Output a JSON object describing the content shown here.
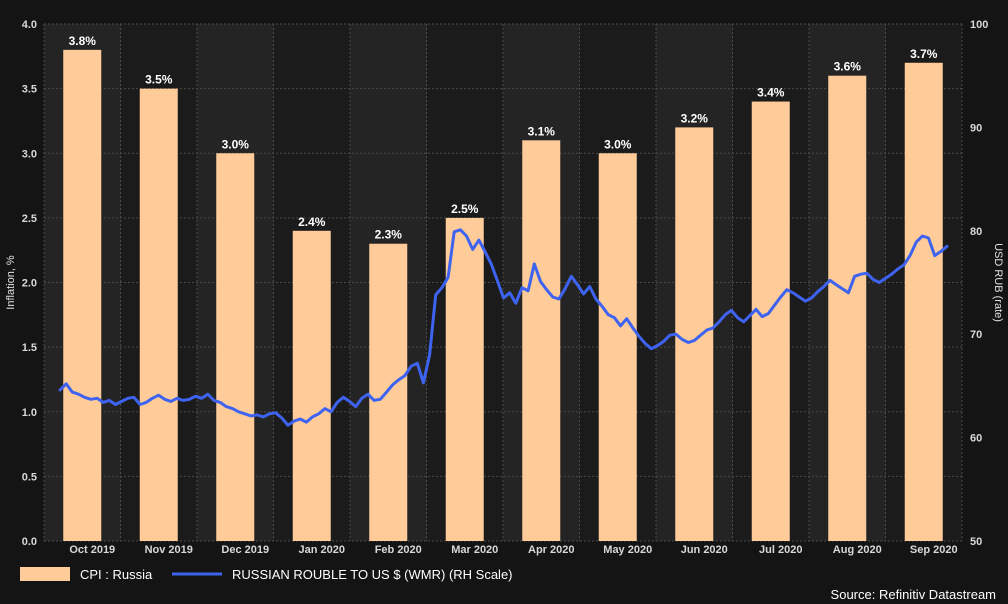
{
  "chart_data": {
    "type": "bar+line",
    "title": "",
    "categories": [
      "Oct 2019",
      "Nov 2019",
      "Dec 2019",
      "Jan 2020",
      "Feb 2020",
      "Mar 2020",
      "Apr 2020",
      "May 2020",
      "Jun 2020",
      "Jul 2020",
      "Aug 2020",
      "Sep 2020"
    ],
    "bar_series": {
      "name": "CPI : Russia",
      "values": [
        3.8,
        3.5,
        3.0,
        2.4,
        2.3,
        2.5,
        3.1,
        3.0,
        3.2,
        3.4,
        3.6,
        3.7
      ],
      "data_labels": [
        "3.8%",
        "3.5%",
        "3.0%",
        "2.4%",
        "2.3%",
        "2.5%",
        "3.1%",
        "3.0%",
        "3.2%",
        "3.4%",
        "3.6%",
        "3.7%"
      ],
      "color": "#ffcc99"
    },
    "line_series": {
      "name": "RUSSIAN ROUBLE TO US $ (WMR) (RH Scale)",
      "color": "#3d63f0",
      "values": [
        64.6,
        65.2,
        64.4,
        64.2,
        63.9,
        63.7,
        63.8,
        63.4,
        63.6,
        63.2,
        63.5,
        63.8,
        63.9,
        63.2,
        63.4,
        63.8,
        64.1,
        63.7,
        63.5,
        63.8,
        63.6,
        63.7,
        64.0,
        63.8,
        64.2,
        63.6,
        63.4,
        63.0,
        62.8,
        62.5,
        62.3,
        62.1,
        62.2,
        62.0,
        62.3,
        62.4,
        61.9,
        61.2,
        61.6,
        61.8,
        61.5,
        62.0,
        62.3,
        62.8,
        62.5,
        63.4,
        63.9,
        63.5,
        63.0,
        63.8,
        64.2,
        63.6,
        63.7,
        64.4,
        65.1,
        65.6,
        66.0,
        66.9,
        67.2,
        65.3,
        68.0,
        73.8,
        74.5,
        75.5,
        79.9,
        80.1,
        79.5,
        78.2,
        79.1,
        78.0,
        76.8,
        75.2,
        73.5,
        74.0,
        73.0,
        74.5,
        74.2,
        76.8,
        75.1,
        74.3,
        73.6,
        73.4,
        74.4,
        75.6,
        74.8,
        73.9,
        74.6,
        73.4,
        72.7,
        71.9,
        71.6,
        70.8,
        71.5,
        70.6,
        69.8,
        69.1,
        68.6,
        68.9,
        69.3,
        69.9,
        70.0,
        69.5,
        69.2,
        69.4,
        69.9,
        70.4,
        70.6,
        71.2,
        71.9,
        72.3,
        71.6,
        71.2,
        71.8,
        72.4,
        71.7,
        72.0,
        72.8,
        73.6,
        74.3,
        74.0,
        73.6,
        73.2,
        73.5,
        74.1,
        74.6,
        75.2,
        74.8,
        74.4,
        74.0,
        75.6,
        75.8,
        75.9,
        75.3,
        75.0,
        75.4,
        75.8,
        76.3,
        76.7,
        77.6,
        78.9,
        79.5,
        79.3,
        77.6,
        78.0,
        78.5
      ]
    },
    "y_left": {
      "label": "Inflation, %",
      "min": 0,
      "max": 4,
      "ticks": [
        "0.0",
        "0.5",
        "1.0",
        "1.5",
        "2.0",
        "2.5",
        "3.0",
        "3.5",
        "4.0"
      ]
    },
    "y_right": {
      "label": "USD RUB (rate)",
      "min": 50,
      "max": 100,
      "ticks": [
        "50",
        "60",
        "70",
        "80",
        "90",
        "100"
      ]
    },
    "grid": true,
    "legend_position": "bottom-left",
    "source": "Source: Refinitiv Datastream"
  }
}
